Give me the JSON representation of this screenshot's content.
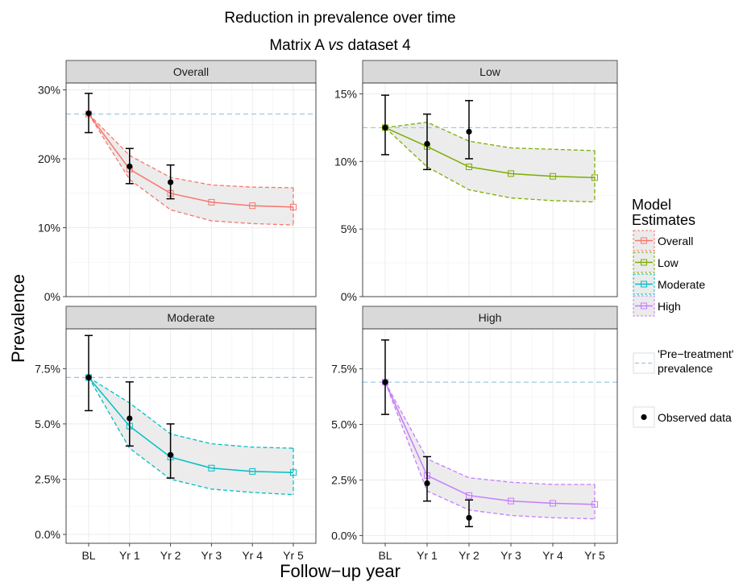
{
  "chart_data": {
    "type": "line",
    "title": "Reduction in prevalence over time",
    "subtitle": {
      "part1": "Matrix  A ",
      "part2": "vs",
      "part3": " dataset 4"
    },
    "xlabel": "Follow−up year",
    "ylabel": "Prevalence",
    "categories": [
      "BL",
      "Yr 1",
      "Yr 2",
      "Yr 3",
      "Yr 4",
      "Yr 5"
    ],
    "legend": {
      "title_line1": "Model",
      "title_line2": " Estimates",
      "position": "right",
      "pretreatment_line1": "'Pre−treatment'",
      "pretreatment_line2": " prevalence",
      "observed_label": "Observed data"
    },
    "colors": {
      "Overall": "#F8766D",
      "Low": "#7CAE00",
      "Moderate": "#00BFC4",
      "High": "#C77CFF",
      "pretreatment": "#9ECAE1",
      "ribbon": "#EBEBEB",
      "strip": "#D9D9D9",
      "grid": "#EBEBEB"
    },
    "panels": [
      {
        "name": "Overall",
        "ylim": [
          0,
          31
        ],
        "yticks": [
          0,
          10,
          20,
          30
        ],
        "ytick_labels": [
          "0%",
          "10%",
          "20%",
          "30%"
        ],
        "pretreatment": 26.5,
        "estimate": [
          26.5,
          18.5,
          15.0,
          13.7,
          13.2,
          13.0
        ],
        "lower": [
          26.5,
          17.0,
          12.6,
          11.0,
          10.6,
          10.4
        ],
        "upper": [
          26.5,
          20.5,
          17.3,
          16.2,
          15.9,
          15.8
        ],
        "observed": [
          {
            "x": "BL",
            "y": 26.6,
            "lo": 23.8,
            "hi": 29.5
          },
          {
            "x": "Yr 1",
            "y": 18.9,
            "lo": 16.4,
            "hi": 21.5
          },
          {
            "x": "Yr 2",
            "y": 16.6,
            "lo": 14.2,
            "hi": 19.1
          }
        ]
      },
      {
        "name": "Low",
        "ylim": [
          0,
          15.8
        ],
        "yticks": [
          0,
          5,
          10,
          15
        ],
        "ytick_labels": [
          "0%",
          "5%",
          "10%",
          "15%"
        ],
        "pretreatment": 12.5,
        "estimate": [
          12.5,
          11.1,
          9.6,
          9.1,
          8.9,
          8.8
        ],
        "lower": [
          12.5,
          9.6,
          7.9,
          7.3,
          7.1,
          7.0
        ],
        "upper": [
          12.5,
          12.9,
          11.5,
          11.0,
          10.9,
          10.8
        ],
        "observed": [
          {
            "x": "BL",
            "y": 12.5,
            "lo": 10.5,
            "hi": 14.9
          },
          {
            "x": "Yr 1",
            "y": 11.3,
            "lo": 9.4,
            "hi": 13.5
          },
          {
            "x": "Yr 2",
            "y": 12.2,
            "lo": 10.2,
            "hi": 14.5
          }
        ]
      },
      {
        "name": "Moderate",
        "ylim": [
          -0.4,
          9.3
        ],
        "yticks": [
          0,
          2.5,
          5.0,
          7.5
        ],
        "ytick_labels": [
          "0.0%",
          "2.5%",
          "5.0%",
          "7.5%"
        ],
        "pretreatment": 7.1,
        "estimate": [
          7.1,
          4.9,
          3.5,
          3.0,
          2.85,
          2.8
        ],
        "lower": [
          7.1,
          3.9,
          2.5,
          2.05,
          1.9,
          1.8
        ],
        "upper": [
          7.1,
          5.95,
          4.55,
          4.1,
          3.95,
          3.9
        ],
        "observed": [
          {
            "x": "BL",
            "y": 7.1,
            "lo": 5.6,
            "hi": 9.0
          },
          {
            "x": "Yr 1",
            "y": 5.25,
            "lo": 4.0,
            "hi": 6.9
          },
          {
            "x": "Yr 2",
            "y": 3.6,
            "lo": 2.55,
            "hi": 5.0
          }
        ]
      },
      {
        "name": "High",
        "ylim": [
          -0.35,
          9.3
        ],
        "yticks": [
          0,
          2.5,
          5.0,
          7.5
        ],
        "ytick_labels": [
          "0.0%",
          "2.5%",
          "5.0%",
          "7.5%"
        ],
        "pretreatment": 6.9,
        "estimate": [
          6.9,
          2.7,
          1.8,
          1.55,
          1.45,
          1.4
        ],
        "lower": [
          6.9,
          2.0,
          1.15,
          0.9,
          0.8,
          0.75
        ],
        "upper": [
          6.9,
          3.45,
          2.6,
          2.4,
          2.3,
          2.3
        ],
        "observed": [
          {
            "x": "BL",
            "y": 6.9,
            "lo": 5.45,
            "hi": 8.8
          },
          {
            "x": "Yr 1",
            "y": 2.35,
            "lo": 1.55,
            "hi": 3.55
          },
          {
            "x": "Yr 2",
            "y": 0.8,
            "lo": 0.4,
            "hi": 1.6
          }
        ]
      }
    ]
  }
}
